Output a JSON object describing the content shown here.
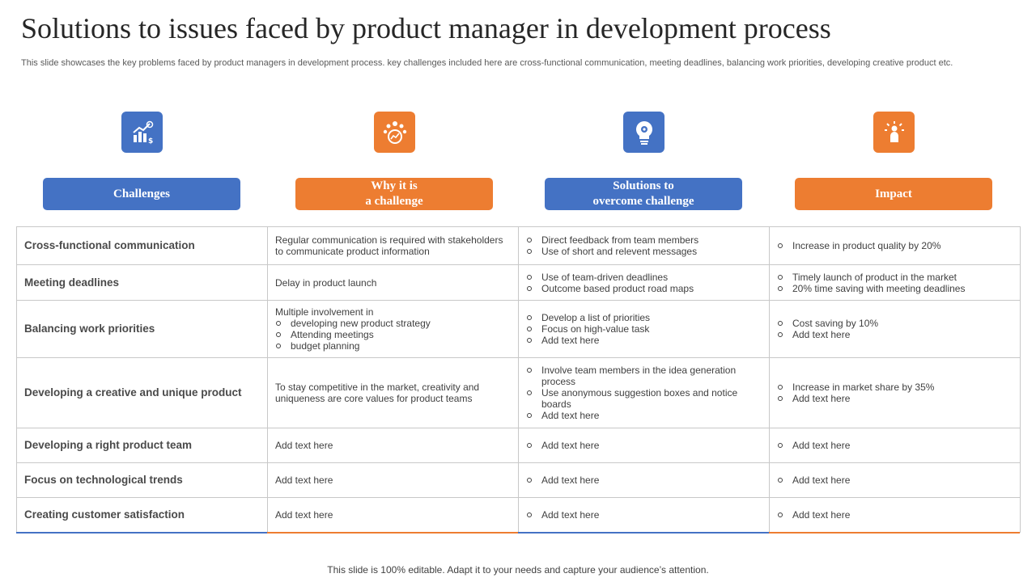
{
  "title": "Solutions to issues faced by product manager in development process",
  "subtitle": "This slide showcases the key problems faced by product managers in development process. key challenges included here are cross-functional communication, meeting deadlines, balancing work priorities, developing creative product etc.",
  "icons": [
    "growth-chart-icon",
    "team-network-icon",
    "lightbulb-gear-icon",
    "idea-person-icon"
  ],
  "headers": [
    "Challenges",
    "Why it is\na challenge",
    "Solutions to\novercome challenge",
    "Impact"
  ],
  "colors": {
    "blue": "#4472c4",
    "orange": "#ed7d31"
  },
  "rows": [
    {
      "challenge": "Cross-functional  communication",
      "why": {
        "text": "Regular communication is required with stakeholders to communicate product information",
        "bullets": []
      },
      "solutions": [
        "Direct feedback from team members",
        "Use of short and relevent messages"
      ],
      "impact": [
        "Increase in product quality by 20%"
      ]
    },
    {
      "challenge": "Meeting deadlines",
      "why": {
        "text": "Delay in product launch",
        "bullets": []
      },
      "solutions": [
        "Use of team-driven deadlines",
        "Outcome based product road maps"
      ],
      "impact": [
        "Timely launch of product in the market",
        "20% time saving with meeting deadlines"
      ]
    },
    {
      "challenge": "Balancing work priorities",
      "why": {
        "text": "Multiple involvement in",
        "bullets": [
          "developing new product strategy",
          "Attending meetings",
          "budget planning"
        ]
      },
      "solutions": [
        "Develop a list of priorities",
        "Focus on high-value task",
        "Add text here"
      ],
      "impact": [
        "Cost saving by 10%",
        "Add text here"
      ]
    },
    {
      "challenge": "Developing a creative and unique product",
      "why": {
        "text": "To stay competitive in the market, creativity and uniqueness are core values for product teams",
        "bullets": []
      },
      "solutions": [
        "Involve team members in the idea generation process",
        "Use anonymous suggestion boxes and notice boards",
        "Add text here"
      ],
      "impact": [
        "Increase in market share by 35%",
        "Add text here"
      ]
    },
    {
      "challenge": "Developing a right product team",
      "why": {
        "text": "Add text here",
        "bullets": []
      },
      "solutions": [
        "Add text here"
      ],
      "impact": [
        "Add text here"
      ]
    },
    {
      "challenge": "Focus on technological trends",
      "why": {
        "text": "Add text here",
        "bullets": []
      },
      "solutions": [
        "Add text here"
      ],
      "impact": [
        "Add text here"
      ]
    },
    {
      "challenge": "Creating customer satisfaction",
      "why": {
        "text": "Add text here",
        "bullets": []
      },
      "solutions": [
        "Add text here"
      ],
      "impact": [
        "Add text here"
      ]
    }
  ],
  "footer": "This slide is 100% editable. Adapt it to your needs and capture your audience’s attention."
}
